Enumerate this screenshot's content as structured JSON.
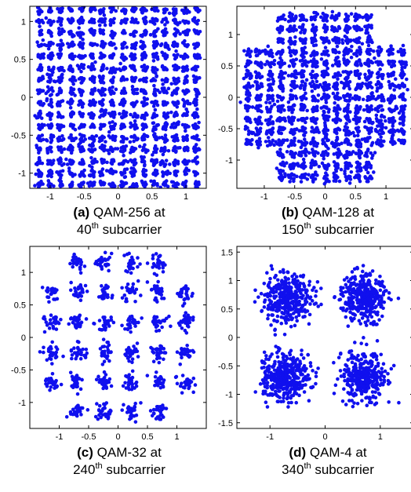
{
  "colors": {
    "marker": "#1010ee",
    "axis": "#000000",
    "background": "#ffffff"
  },
  "chart_data": [
    {
      "id": "a",
      "type": "scatter",
      "caption": {
        "label": "(a)",
        "line1": "QAM-256 at",
        "num": "40",
        "sup": "th",
        "rest": " subcarrier"
      },
      "xlim": [
        -1.3,
        1.3
      ],
      "ylim": [
        -1.2,
        1.2
      ],
      "xticks": [
        -1,
        -0.5,
        0,
        0.5,
        1
      ],
      "xtick_labels": [
        "-1",
        "-0.5",
        "0",
        "0.5",
        "1"
      ],
      "yticks": [
        1,
        0.5,
        0,
        -0.5,
        -1
      ],
      "ytick_labels": [
        "1",
        "0.5",
        "0",
        "-0.5",
        "-1"
      ],
      "constellation": {
        "levels": [
          -1.15,
          -1.0,
          -0.85,
          -0.69,
          -0.54,
          -0.38,
          -0.23,
          -0.08,
          0.08,
          0.23,
          0.38,
          0.54,
          0.69,
          0.85,
          1.0,
          1.15
        ],
        "mask": "all",
        "spread": 0.025,
        "points_per_cluster": 10
      },
      "xlabel": "",
      "ylabel": "",
      "grid": false,
      "legend": "none"
    },
    {
      "id": "b",
      "type": "scatter",
      "caption": {
        "label": "(b)",
        "line1": "QAM-128 at",
        "num": "150",
        "sup": "th",
        "rest": " subcarrier"
      },
      "xlim": [
        -1.45,
        1.45
      ],
      "ylim": [
        -1.45,
        1.45
      ],
      "xticks": [
        -1,
        -0.5,
        0,
        0.5,
        1
      ],
      "xtick_labels": [
        "-1",
        "-0.5",
        "0",
        "0.5",
        "1"
      ],
      "yticks": [
        1,
        0.5,
        0,
        -0.5,
        -1
      ],
      "ytick_labels": [
        "1",
        "0.5",
        "0",
        "-0.5",
        "-1"
      ],
      "constellation": {
        "levels": [
          -1.27,
          -1.09,
          -0.9,
          -0.72,
          -0.54,
          -0.36,
          -0.18,
          0,
          0.18,
          0.36,
          0.54,
          0.72,
          0.9,
          1.09,
          1.27
        ],
        "mask": "cross-128",
        "spread": 0.035,
        "points_per_cluster": 12
      },
      "xlabel": "",
      "ylabel": "",
      "grid": false,
      "legend": "none"
    },
    {
      "id": "c",
      "type": "scatter",
      "caption": {
        "label": "(c)",
        "line1": "QAM-32 at",
        "num": "240",
        "sup": "th",
        "rest": " subcarrier"
      },
      "xlim": [
        -1.5,
        1.5
      ],
      "ylim": [
        -1.4,
        1.4
      ],
      "xticks": [
        -1,
        -0.5,
        0,
        0.5,
        1
      ],
      "xtick_labels": [
        "-1",
        "-0.5",
        "0",
        "0.5",
        "1"
      ],
      "yticks": [
        1,
        0.5,
        0,
        -0.5,
        -1
      ],
      "ytick_labels": [
        "1",
        "0.5",
        "0",
        "-0.5",
        "-1"
      ],
      "constellation": {
        "levels": [
          -1.15,
          -0.69,
          -0.23,
          0.23,
          0.69,
          1.15
        ],
        "mask": "cross-32",
        "spread": 0.07,
        "points_per_cluster": 28
      },
      "xlabel": "",
      "ylabel": "",
      "grid": false,
      "legend": "none"
    },
    {
      "id": "d",
      "type": "scatter",
      "caption": {
        "label": "(d)",
        "line1": "QAM-4 at",
        "num": "340",
        "sup": "th",
        "rest": " subcarrier"
      },
      "xlim": [
        -1.6,
        1.6
      ],
      "ylim": [
        -1.6,
        1.6
      ],
      "xticks": [
        -1,
        0,
        1
      ],
      "xtick_labels": [
        "-1",
        "0",
        "1"
      ],
      "yticks": [
        1.5,
        1,
        0.5,
        0,
        -0.5,
        -1,
        -1.5
      ],
      "ytick_labels": [
        "1.5",
        "1",
        "0.5",
        "0",
        "-0.5",
        "-1",
        "-1.5"
      ],
      "constellation": {
        "levels": [
          -0.7,
          0.7
        ],
        "mask": "all",
        "spread": 0.22,
        "points_per_cluster": 340
      },
      "xlabel": "",
      "ylabel": "",
      "grid": false,
      "legend": "none"
    }
  ]
}
